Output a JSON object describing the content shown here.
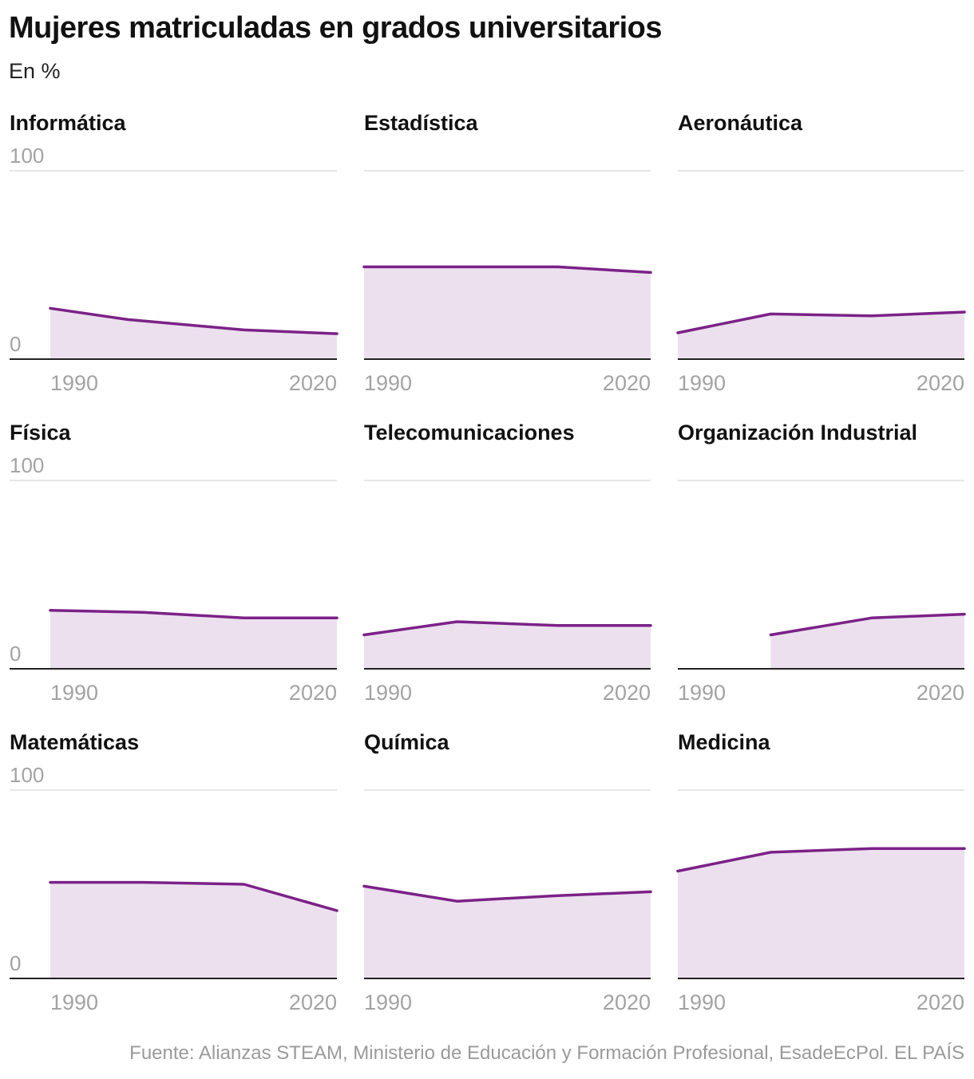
{
  "header": {
    "title": "Mujeres matriculadas en grados universitarios",
    "subtitle": "En %"
  },
  "footer": {
    "source": "Fuente: Alianzas STEAM, Ministerio de Educación y Formación Profesional, EsadeEcPol. EL PAÍS"
  },
  "colors": {
    "line": "#7b2287",
    "fill": "#ece0ee",
    "grid": "#dddddd",
    "baseline": "#222222",
    "tick_text": "#a3a3a3",
    "panel_title": "#111111"
  },
  "chart_data": [
    {
      "type": "area",
      "title": "Informática",
      "xlim": [
        1985,
        2022
      ],
      "ylim": [
        0,
        100
      ],
      "yticks": [
        0,
        100
      ],
      "xticks": [
        1990,
        2020
      ],
      "x": [
        1985,
        1995,
        2010,
        2022
      ],
      "values": [
        27,
        21,
        15.5,
        13.5
      ]
    },
    {
      "type": "area",
      "title": "Estadística",
      "xlim": [
        1985,
        2022
      ],
      "ylim": [
        0,
        100
      ],
      "yticks": [
        0,
        100
      ],
      "xticks": [
        1990,
        2020
      ],
      "x": [
        1985,
        1995,
        2010,
        2022
      ],
      "values": [
        49,
        49,
        49,
        46
      ]
    },
    {
      "type": "area",
      "title": "Aeronáutica",
      "xlim": [
        1985,
        2022
      ],
      "ylim": [
        0,
        100
      ],
      "yticks": [
        0,
        100
      ],
      "xticks": [
        1990,
        2020
      ],
      "x": [
        1985,
        1997,
        2010,
        2022
      ],
      "values": [
        14,
        24,
        23,
        25
      ]
    },
    {
      "type": "area",
      "title": "Física",
      "xlim": [
        1985,
        2022
      ],
      "ylim": [
        0,
        100
      ],
      "yticks": [
        0,
        100
      ],
      "xticks": [
        1990,
        2020
      ],
      "x": [
        1985,
        1997,
        2010,
        2022
      ],
      "values": [
        31,
        30,
        27,
        27
      ]
    },
    {
      "type": "area",
      "title": "Telecomunicaciones",
      "xlim": [
        1985,
        2022
      ],
      "ylim": [
        0,
        100
      ],
      "yticks": [
        0,
        100
      ],
      "xticks": [
        1990,
        2020
      ],
      "x": [
        1985,
        1997,
        2010,
        2022
      ],
      "values": [
        18,
        25,
        23,
        23
      ]
    },
    {
      "type": "area",
      "title": "Organización Industrial",
      "xlim": [
        1985,
        2022
      ],
      "ylim": [
        0,
        100
      ],
      "yticks": [
        0,
        100
      ],
      "xticks": [
        1990,
        2020
      ],
      "x": [
        1997,
        2010,
        2022
      ],
      "values": [
        18,
        27,
        29
      ]
    },
    {
      "type": "area",
      "title": "Matemáticas",
      "xlim": [
        1985,
        2022
      ],
      "ylim": [
        0,
        100
      ],
      "yticks": [
        0,
        100
      ],
      "xticks": [
        1990,
        2020
      ],
      "x": [
        1985,
        1997,
        2010,
        2022
      ],
      "values": [
        51,
        51,
        50,
        36
      ]
    },
    {
      "type": "area",
      "title": "Química",
      "xlim": [
        1985,
        2022
      ],
      "ylim": [
        0,
        100
      ],
      "yticks": [
        0,
        100
      ],
      "xticks": [
        1990,
        2020
      ],
      "x": [
        1985,
        1997,
        2010,
        2022
      ],
      "values": [
        49,
        41,
        44,
        46
      ]
    },
    {
      "type": "area",
      "title": "Medicina",
      "xlim": [
        1985,
        2022
      ],
      "ylim": [
        0,
        100
      ],
      "yticks": [
        0,
        100
      ],
      "xticks": [
        1990,
        2020
      ],
      "x": [
        1985,
        1997,
        2010,
        2022
      ],
      "values": [
        57,
        67,
        69,
        69
      ]
    }
  ]
}
